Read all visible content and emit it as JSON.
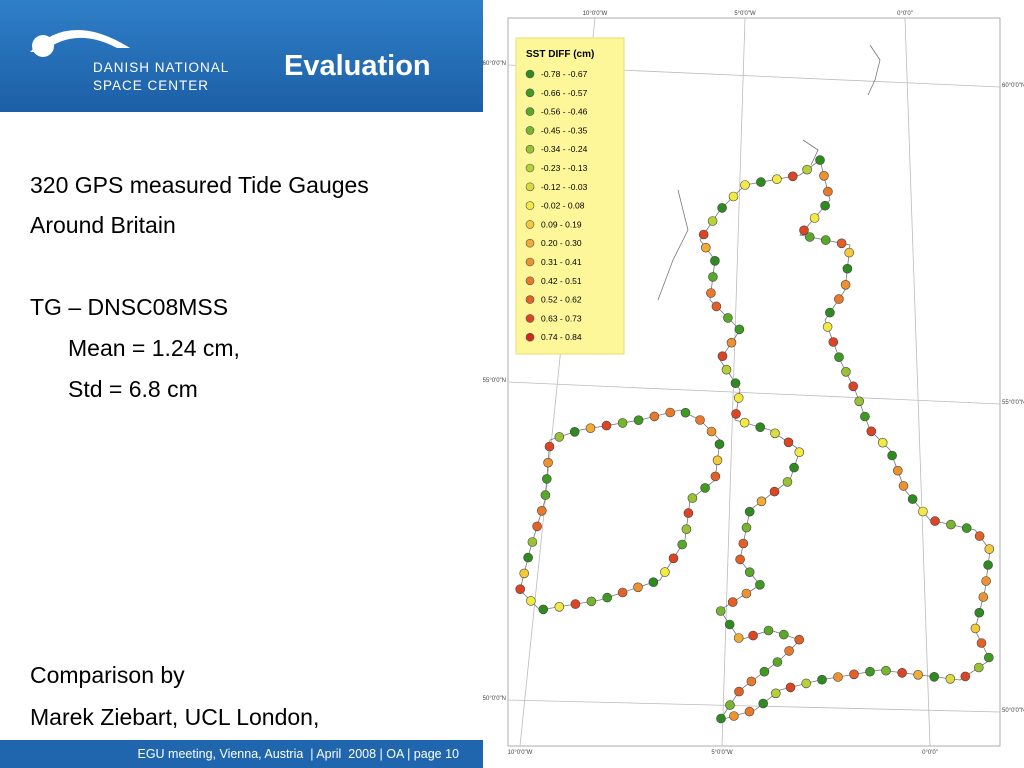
{
  "header": {
    "logo_line1": "DANISH NATIONAL",
    "logo_line2": "SPACE CENTER",
    "title": "Evaluation"
  },
  "body": {
    "lines": [
      "320 GPS measured Tide Gauges",
      "Around Britain",
      "TG – DNSC08MSS",
      "Mean = 1.24 cm,",
      "Std = 6.8 cm",
      "Comparison by",
      "Marek Ziebart, UCL London,"
    ]
  },
  "footer": "EGU meeting, Vienna, Austria  | April  2008 | OA | page 10",
  "map": {
    "lon_labels": [
      "10°0'0\"W",
      "5°0'0\"W",
      "0°0'0\""
    ],
    "lat_labels": [
      "60°0'0\"N",
      "55°0'0\"N",
      "50°0'0\"N"
    ],
    "legend": {
      "title": "SST DIFF (cm)",
      "items": [
        {
          "label": "-0.78 - -0.67",
          "color": "#2e8b1f"
        },
        {
          "label": "-0.66 - -0.57",
          "color": "#3f9a22"
        },
        {
          "label": "-0.56 - -0.46",
          "color": "#5aa82a"
        },
        {
          "label": "-0.45 - -0.35",
          "color": "#78b52f"
        },
        {
          "label": "-0.34 - -0.24",
          "color": "#98c233"
        },
        {
          "label": "-0.23 - -0.13",
          "color": "#b8d038"
        },
        {
          "label": "-0.12 - -0.03",
          "color": "#d8dc3c"
        },
        {
          "label": "-0.02 - 0.08",
          "color": "#f2ea40"
        },
        {
          "label": "0.09 - 0.19",
          "color": "#f5c93a"
        },
        {
          "label": "0.20 - 0.30",
          "color": "#f2ab34"
        },
        {
          "label": "0.31 - 0.41",
          "color": "#ee922f"
        },
        {
          "label": "0.42 - 0.51",
          "color": "#ea7a2b"
        },
        {
          "label": "0.52 - 0.62",
          "color": "#e46027"
        },
        {
          "label": "0.63 - 0.73",
          "color": "#dd4423"
        },
        {
          "label": "0.74 - 0.84",
          "color": "#d4251e"
        }
      ]
    }
  }
}
